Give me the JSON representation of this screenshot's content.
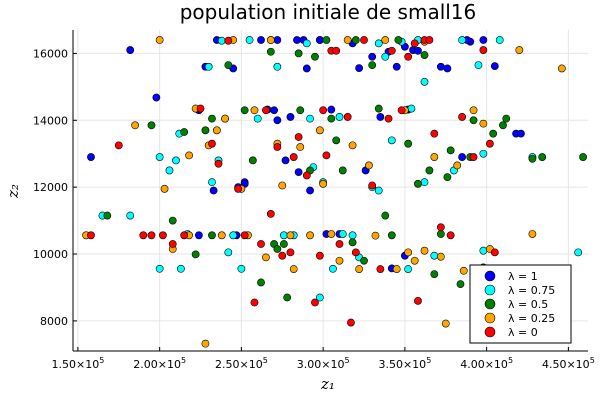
{
  "chart_data": {
    "type": "scatter",
    "title": "population initiale de small16",
    "xlabel": "z₁",
    "ylabel": "z₂",
    "xlim": [
      147000,
      462000
    ],
    "ylim": [
      7100,
      16700
    ],
    "grid": true,
    "legend_position": "bottom-right",
    "x_ticks": [
      {
        "value": 150000,
        "mantissa": "1.50×10",
        "exp": "5"
      },
      {
        "value": 200000,
        "mantissa": "2.00×10",
        "exp": "5"
      },
      {
        "value": 250000,
        "mantissa": "2.50×10",
        "exp": "5"
      },
      {
        "value": 300000,
        "mantissa": "3.00×10",
        "exp": "5"
      },
      {
        "value": 350000,
        "mantissa": "3.50×10",
        "exp": "5"
      },
      {
        "value": 400000,
        "mantissa": "4.00×10",
        "exp": "5"
      },
      {
        "value": 450000,
        "mantissa": "4.50×10",
        "exp": "5"
      }
    ],
    "y_ticks": [
      {
        "value": 8000,
        "label": "8000"
      },
      {
        "value": 10000,
        "label": "10000"
      },
      {
        "value": 12000,
        "label": "12000"
      },
      {
        "value": 14000,
        "label": "14000"
      },
      {
        "value": 16000,
        "label": "16000"
      }
    ],
    "series": [
      {
        "name": "λ = 1",
        "color": "#0000ff",
        "points": [
          [
            158000,
            12900
          ],
          [
            182000,
            16100
          ],
          [
            198000,
            14680
          ],
          [
            224000,
            14300
          ],
          [
            228000,
            15600
          ],
          [
            235000,
            16400
          ],
          [
            245000,
            15550
          ],
          [
            248000,
            12000
          ],
          [
            252000,
            12150
          ],
          [
            262000,
            16400
          ],
          [
            266000,
            14320
          ],
          [
            270000,
            14300
          ],
          [
            272000,
            16400
          ],
          [
            277000,
            12800
          ],
          [
            280000,
            14100
          ],
          [
            284000,
            16400
          ],
          [
            288000,
            16400
          ],
          [
            290000,
            15550
          ],
          [
            298000,
            16400
          ],
          [
            302000,
            10600
          ],
          [
            305000,
            14320
          ],
          [
            310000,
            10600
          ],
          [
            318000,
            16300
          ],
          [
            322000,
            15560
          ],
          [
            326000,
            12500
          ],
          [
            330000,
            15900
          ],
          [
            335000,
            14100
          ],
          [
            340000,
            16050
          ],
          [
            345000,
            15600
          ],
          [
            350000,
            16200
          ],
          [
            352000,
            14320
          ],
          [
            355000,
            16100
          ],
          [
            358000,
            16080
          ],
          [
            372000,
            15600
          ],
          [
            376000,
            15550
          ],
          [
            385000,
            12900
          ],
          [
            390000,
            16350
          ],
          [
            398000,
            16400
          ],
          [
            405000,
            15620
          ],
          [
            418000,
            13600
          ],
          [
            421000,
            13600
          ],
          [
            224000,
            10560
          ],
          [
            233000,
            11900
          ],
          [
            247000,
            10560
          ],
          [
            252000,
            12100
          ],
          [
            272000,
            14000
          ],
          [
            285000,
            12450
          ],
          [
            292000,
            11900
          ],
          [
            298000,
            16400
          ],
          [
            342000,
            9570
          ],
          [
            350000,
            9950
          ],
          [
            388000,
            16400
          ]
        ]
      },
      {
        "name": "λ = 0.75",
        "color": "#00ffff",
        "points": [
          [
            165000,
            11150
          ],
          [
            182000,
            11150
          ],
          [
            200000,
            12900
          ],
          [
            200000,
            9560
          ],
          [
            210000,
            12800
          ],
          [
            213000,
            9560
          ],
          [
            217000,
            10600
          ],
          [
            230000,
            15600
          ],
          [
            232000,
            12150
          ],
          [
            238000,
            16380
          ],
          [
            242000,
            10050
          ],
          [
            245000,
            10560
          ],
          [
            250000,
            9560
          ],
          [
            255000,
            16400
          ],
          [
            260000,
            14050
          ],
          [
            268000,
            16400
          ],
          [
            272000,
            15600
          ],
          [
            276000,
            10560
          ],
          [
            282000,
            10560
          ],
          [
            290000,
            16300
          ],
          [
            292000,
            14050
          ],
          [
            294000,
            12600
          ],
          [
            298000,
            8700
          ],
          [
            300000,
            12150
          ],
          [
            306000,
            9560
          ],
          [
            310000,
            14100
          ],
          [
            312000,
            10600
          ],
          [
            318000,
            10560
          ],
          [
            322000,
            9900
          ],
          [
            330000,
            12000
          ],
          [
            334000,
            16300
          ],
          [
            338000,
            15900
          ],
          [
            342000,
            13400
          ],
          [
            348000,
            16350
          ],
          [
            352000,
            9550
          ],
          [
            354000,
            14350
          ],
          [
            358000,
            16400
          ],
          [
            362000,
            12150
          ],
          [
            368000,
            9950
          ],
          [
            380000,
            12500
          ],
          [
            385000,
            16400
          ],
          [
            395000,
            15650
          ],
          [
            398000,
            10100
          ],
          [
            408000,
            16400
          ],
          [
            428000,
            12900
          ],
          [
            456000,
            10050
          ],
          [
            212000,
            13600
          ],
          [
            206000,
            12500
          ],
          [
            236000,
            12800
          ],
          [
            334000,
            11900
          ],
          [
            362000,
            15150
          ],
          [
            398000,
            13000
          ]
        ]
      },
      {
        "name": "λ = 0.5",
        "color": "#008000",
        "points": [
          [
            168000,
            11150
          ],
          [
            195000,
            13850
          ],
          [
            208000,
            11000
          ],
          [
            215000,
            13650
          ],
          [
            222000,
            9990
          ],
          [
            228000,
            13700
          ],
          [
            232000,
            14050
          ],
          [
            232000,
            10560
          ],
          [
            240000,
            14050
          ],
          [
            242000,
            15650
          ],
          [
            252000,
            14300
          ],
          [
            257000,
            12800
          ],
          [
            262000,
            9150
          ],
          [
            268000,
            16050
          ],
          [
            270000,
            10300
          ],
          [
            276000,
            10300
          ],
          [
            278000,
            8700
          ],
          [
            285000,
            16000
          ],
          [
            286000,
            14300
          ],
          [
            292000,
            12500
          ],
          [
            295000,
            15900
          ],
          [
            302000,
            16400
          ],
          [
            305000,
            14050
          ],
          [
            308000,
            13400
          ],
          [
            312000,
            12500
          ],
          [
            318000,
            10350
          ],
          [
            320000,
            16400
          ],
          [
            325000,
            9800
          ],
          [
            330000,
            15650
          ],
          [
            334000,
            14350
          ],
          [
            338000,
            11150
          ],
          [
            342000,
            10560
          ],
          [
            346000,
            16400
          ],
          [
            352000,
            13300
          ],
          [
            358000,
            12100
          ],
          [
            362000,
            15950
          ],
          [
            365000,
            12500
          ],
          [
            372000,
            10600
          ],
          [
            376000,
            12300
          ],
          [
            378000,
            13100
          ],
          [
            384000,
            9100
          ],
          [
            390000,
            12900
          ],
          [
            392000,
            14000
          ],
          [
            398000,
            9600
          ],
          [
            404000,
            13600
          ],
          [
            410000,
            13850
          ],
          [
            412000,
            14050
          ],
          [
            428000,
            12850
          ],
          [
            434000,
            12900
          ],
          [
            459000,
            12900
          ],
          [
            272000,
            10150
          ],
          [
            368000,
            9400
          ]
        ]
      },
      {
        "name": "λ = 0.25",
        "color": "#ffa500",
        "points": [
          [
            155000,
            10560
          ],
          [
            185000,
            13850
          ],
          [
            200000,
            16400
          ],
          [
            203000,
            11950
          ],
          [
            218000,
            10560
          ],
          [
            218000,
            12950
          ],
          [
            222000,
            14350
          ],
          [
            228000,
            7320
          ],
          [
            230000,
            13250
          ],
          [
            235000,
            13700
          ],
          [
            238000,
            10560
          ],
          [
            240000,
            14050
          ],
          [
            245000,
            16400
          ],
          [
            250000,
            11950
          ],
          [
            254000,
            10560
          ],
          [
            258000,
            14300
          ],
          [
            265000,
            9900
          ],
          [
            268000,
            16400
          ],
          [
            272000,
            13300
          ],
          [
            275000,
            12050
          ],
          [
            280000,
            10560
          ],
          [
            282000,
            9550
          ],
          [
            286000,
            13200
          ],
          [
            292000,
            10560
          ],
          [
            298000,
            13700
          ],
          [
            300000,
            12100
          ],
          [
            305000,
            10600
          ],
          [
            310000,
            9800
          ],
          [
            315000,
            16400
          ],
          [
            318000,
            13250
          ],
          [
            322000,
            9550
          ],
          [
            328000,
            12650
          ],
          [
            332000,
            10550
          ],
          [
            338000,
            16400
          ],
          [
            345000,
            9550
          ],
          [
            350000,
            14300
          ],
          [
            352000,
            10050
          ],
          [
            356000,
            9800
          ],
          [
            362000,
            16350
          ],
          [
            368000,
            12900
          ],
          [
            372000,
            9920
          ],
          [
            375000,
            7920
          ],
          [
            382000,
            12650
          ],
          [
            386000,
            9500
          ],
          [
            392000,
            14300
          ],
          [
            398000,
            13900
          ],
          [
            402000,
            10150
          ],
          [
            420000,
            16100
          ],
          [
            428000,
            10600
          ],
          [
            446000,
            15550
          ],
          [
            208000,
            10150
          ],
          [
            362000,
            10100
          ]
        ]
      },
      {
        "name": "λ = 0",
        "color": "#ff0000",
        "points": [
          [
            158000,
            10560
          ],
          [
            175000,
            13250
          ],
          [
            190000,
            10560
          ],
          [
            195000,
            10560
          ],
          [
            202000,
            10560
          ],
          [
            208000,
            10300
          ],
          [
            215000,
            10560
          ],
          [
            225000,
            14350
          ],
          [
            232000,
            13300
          ],
          [
            236000,
            12700
          ],
          [
            242000,
            16380
          ],
          [
            248000,
            11950
          ],
          [
            252000,
            10560
          ],
          [
            258000,
            8550
          ],
          [
            262000,
            10300
          ],
          [
            265000,
            14300
          ],
          [
            268000,
            11200
          ],
          [
            272000,
            13200
          ],
          [
            275000,
            9950
          ],
          [
            280000,
            10050
          ],
          [
            282000,
            12900
          ],
          [
            285000,
            13500
          ],
          [
            290000,
            12350
          ],
          [
            295000,
            8550
          ],
          [
            298000,
            9950
          ],
          [
            300000,
            14300
          ],
          [
            302000,
            12950
          ],
          [
            305000,
            16080
          ],
          [
            308000,
            16080
          ],
          [
            310000,
            10300
          ],
          [
            315000,
            14100
          ],
          [
            317000,
            7950
          ],
          [
            320000,
            10050
          ],
          [
            325000,
            16400
          ],
          [
            330000,
            12050
          ],
          [
            335000,
            9550
          ],
          [
            340000,
            14050
          ],
          [
            342000,
            16080
          ],
          [
            348000,
            14300
          ],
          [
            352000,
            15900
          ],
          [
            356000,
            16300
          ],
          [
            358000,
            8600
          ],
          [
            362000,
            16400
          ],
          [
            365000,
            16400
          ],
          [
            368000,
            13600
          ],
          [
            372000,
            10800
          ],
          [
            378000,
            10560
          ],
          [
            385000,
            14100
          ],
          [
            392000,
            12900
          ],
          [
            398000,
            16100
          ],
          [
            402000,
            13300
          ],
          [
            405000,
            10050
          ]
        ]
      }
    ]
  }
}
